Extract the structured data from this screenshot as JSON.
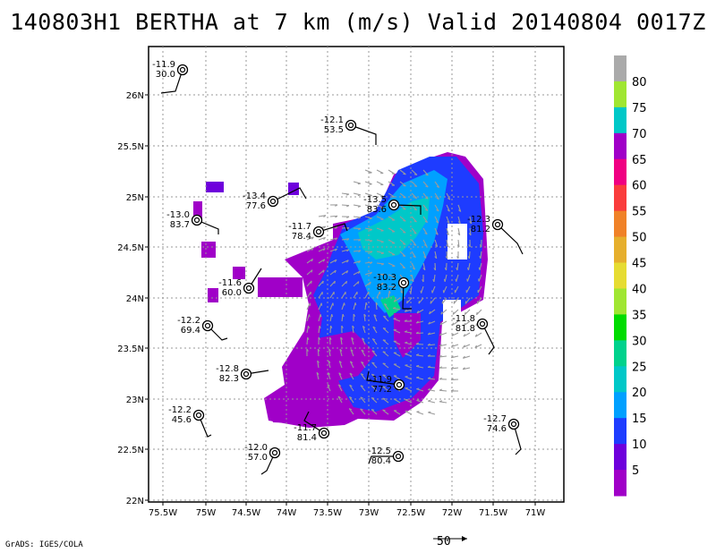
{
  "title": "140803H1 BERTHA at 7 km (m/s) Valid 20140804 0017Z",
  "credit": "GrADS: IGES/COLA",
  "vector_scale_label": "50",
  "lon_labels": [
    "75.5W",
    "75W",
    "74.5W",
    "74W",
    "73.5W",
    "73W",
    "72.5W",
    "72W",
    "71.5W",
    "71W"
  ],
  "lat_labels": [
    "22N",
    "22.5N",
    "23N",
    "23.5N",
    "24N",
    "24.5N",
    "25N",
    "25.5N",
    "26N"
  ],
  "colorbar": {
    "labels": [
      "5",
      "10",
      "15",
      "20",
      "25",
      "30",
      "35",
      "40",
      "45",
      "50",
      "55",
      "60",
      "65",
      "70",
      "75",
      "80"
    ],
    "colors": [
      "#a000c8",
      "#6e00dc",
      "#1e3cff",
      "#00a0ff",
      "#00c8c8",
      "#00d28c",
      "#00dc00",
      "#a0e632",
      "#e6dc32",
      "#e6af2d",
      "#f08228",
      "#fa3c3c",
      "#f00082",
      "#a000c8",
      "#00c8c8",
      "#a0e632",
      "#aaaaaa"
    ]
  },
  "stations": [
    {
      "temp": "-11.9",
      "rh": "30.0"
    },
    {
      "temp": "-12.1",
      "rh": "53.5"
    },
    {
      "temp": "-13.4",
      "rh": "77.6"
    },
    {
      "temp": "-13.5",
      "rh": "83.6"
    },
    {
      "temp": "-13.0",
      "rh": "83.7"
    },
    {
      "temp": "-11.7",
      "rh": "78.4"
    },
    {
      "temp": "-12.3",
      "rh": "81.2"
    },
    {
      "temp": "-11.6",
      "rh": "60.0"
    },
    {
      "temp": "-10.3",
      "rh": "83.2"
    },
    {
      "temp": "-12.2",
      "rh": "69.4"
    },
    {
      "temp": "-11.8",
      "rh": "81.8"
    },
    {
      "temp": "-12.8",
      "rh": "82.3"
    },
    {
      "temp": "-11.9",
      "rh": "77.2"
    },
    {
      "temp": "-12.2",
      "rh": "45.6"
    },
    {
      "temp": "-12.7",
      "rh": "74.6"
    },
    {
      "temp": "-11.7",
      "rh": "81.4"
    },
    {
      "temp": "-12.0",
      "rh": "57.0"
    },
    {
      "temp": "-12.5",
      "rh": "80.4"
    }
  ]
}
